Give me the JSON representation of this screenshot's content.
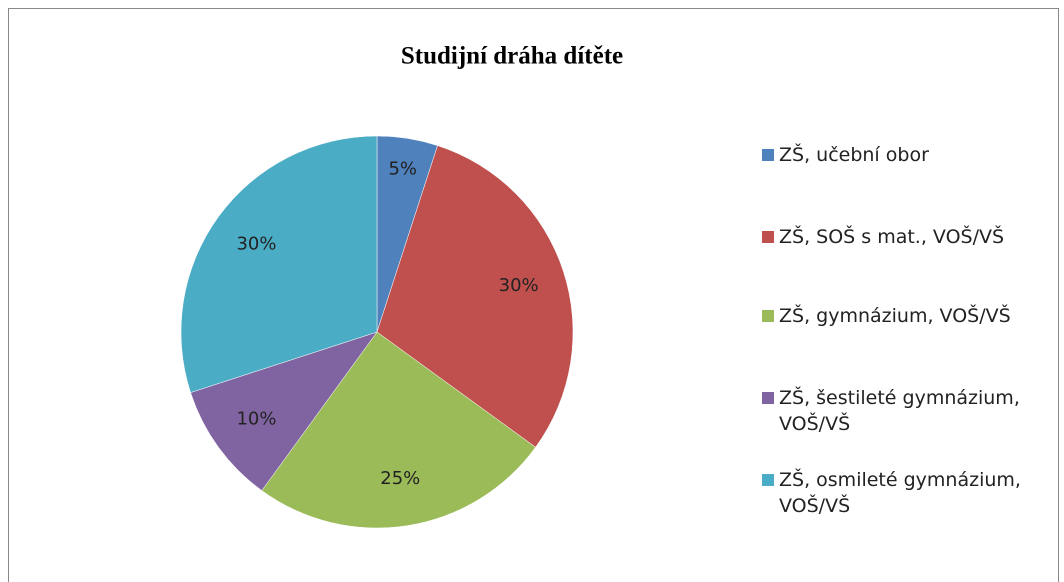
{
  "chart_data": {
    "type": "pie",
    "title": "Studijní dráha dítěte",
    "categories": [
      "ZŠ, učební obor",
      "ZŠ, SOŠ s mat., VOŠ/VŠ",
      "ZŠ, gymnázium, VOŠ/VŠ",
      "ZŠ, šestileté gymnázium, VOŠ/VŠ",
      "ZŠ, osmileté gymnázium, VOŠ/VŠ"
    ],
    "values": [
      5,
      30,
      25,
      10,
      30
    ],
    "value_labels": [
      "5%",
      "30%",
      "25%",
      "10%",
      "30%"
    ],
    "colors": [
      "#4f81bd",
      "#c0504d",
      "#9bbb59",
      "#8064a2",
      "#4bacc6"
    ],
    "legend": "right"
  }
}
